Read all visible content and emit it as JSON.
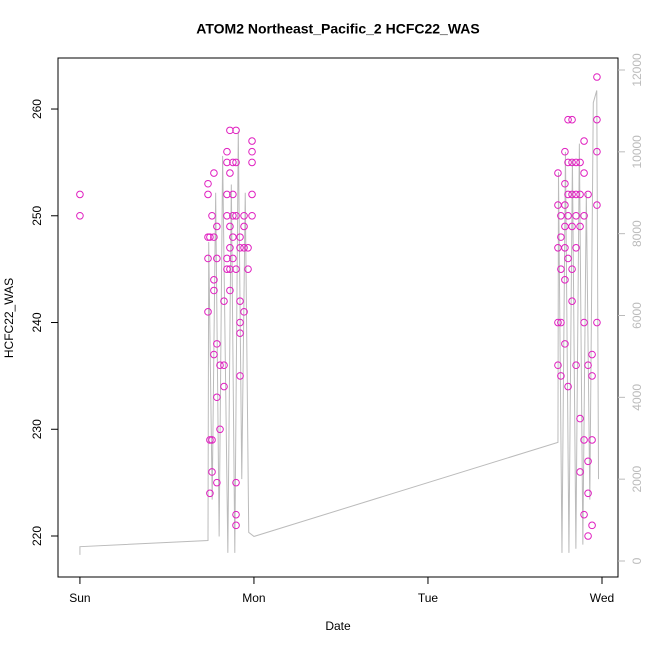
{
  "chart_data": {
    "type": "scatter",
    "title": "ATOM2 Northeast_Pacific_2 HCFC22_WAS",
    "xlabel": "Date",
    "ylabel": "HCFC22_WAS",
    "xlim": [
      -0.126,
      3.092
    ],
    "xticks": [
      {
        "value": 0,
        "label": "Sun"
      },
      {
        "value": 1,
        "label": "Mon"
      },
      {
        "value": 2,
        "label": "Tue"
      },
      {
        "value": 3,
        "label": "Wed"
      }
    ],
    "ylim": [
      216.16,
      264.78
    ],
    "yticks": [
      220,
      230,
      240,
      250,
      260
    ],
    "y2lim": [
      -391,
      12293
    ],
    "y2ticks": [
      0,
      2000,
      4000,
      6000,
      8000,
      10000,
      12000
    ],
    "series": [
      {
        "color": "#e020c0",
        "x": [
          0,
          0,
          0.736,
          0.736,
          0.736,
          0.736,
          0.736,
          0.747,
          0.747,
          0.747,
          0.759,
          0.759,
          0.759,
          0.77,
          0.77,
          0.77,
          0.77,
          0.77,
          0.787,
          0.787,
          0.787,
          0.787,
          0.787,
          0.805,
          0.805,
          0.828,
          0.828,
          0.828,
          0.845,
          0.845,
          0.845,
          0.845,
          0.845,
          0.845,
          0.862,
          0.862,
          0.862,
          0.862,
          0.862,
          0.862,
          0.879,
          0.879,
          0.879,
          0.879,
          0.879,
          0.897,
          0.897,
          0.897,
          0.897,
          0.897,
          0.897,
          0.897,
          0.92,
          0.92,
          0.92,
          0.92,
          0.92,
          0.92,
          0.943,
          0.943,
          0.943,
          0.943,
          0.966,
          0.966,
          0.989,
          0.989,
          0.989,
          0.989,
          0.989,
          2.747,
          2.747,
          2.747,
          2.747,
          2.747,
          2.764,
          2.764,
          2.764,
          2.764,
          2.764,
          2.787,
          2.787,
          2.787,
          2.787,
          2.787,
          2.787,
          2.787,
          2.805,
          2.805,
          2.805,
          2.805,
          2.805,
          2.805,
          2.828,
          2.828,
          2.828,
          2.828,
          2.828,
          2.828,
          2.851,
          2.851,
          2.851,
          2.851,
          2.851,
          2.874,
          2.874,
          2.874,
          2.874,
          2.874,
          2.897,
          2.897,
          2.897,
          2.897,
          2.897,
          2.897,
          2.92,
          2.92,
          2.92,
          2.92,
          2.92,
          2.943,
          2.943,
          2.943,
          2.943,
          2.971,
          2.971,
          2.971,
          2.971,
          2.971
        ],
        "values": [
          252,
          250,
          253,
          252,
          248,
          246,
          241,
          248,
          229,
          224,
          229,
          226,
          250,
          243,
          244,
          237,
          254,
          248,
          249,
          246,
          238,
          233,
          225,
          236,
          230,
          242,
          234,
          236,
          256,
          255,
          252,
          250,
          246,
          245,
          258,
          254,
          249,
          247,
          245,
          243,
          255,
          252,
          250,
          248,
          246,
          258,
          255,
          250,
          245,
          225,
          222,
          221,
          240,
          239,
          242,
          235,
          248,
          247,
          250,
          249,
          247,
          241,
          245,
          247,
          257,
          256,
          255,
          252,
          250,
          254,
          251,
          247,
          240,
          236,
          250,
          248,
          245,
          240,
          235,
          256,
          253,
          251,
          249,
          247,
          244,
          238,
          259,
          255,
          252,
          250,
          246,
          234,
          259,
          255,
          252,
          249,
          245,
          242,
          255,
          252,
          250,
          247,
          236,
          255,
          252,
          249,
          231,
          226,
          257,
          254,
          250,
          240,
          229,
          222,
          252,
          236,
          227,
          220,
          224,
          229,
          221,
          235,
          237,
          263,
          259,
          256,
          240,
          251
        ]
      },
      {
        "color": "#bbbbbb",
        "axis": "y2",
        "x": [
          0,
          0,
          0.736,
          0.74,
          0.76,
          0.78,
          0.8,
          0.82,
          0.85,
          0.87,
          0.89,
          0.91,
          0.93,
          0.95,
          0.97,
          1.0,
          2.747,
          2.75,
          2.77,
          2.79,
          2.81,
          2.83,
          2.85,
          2.87,
          2.89,
          2.91,
          2.93,
          2.95,
          2.97,
          2.98
        ],
        "values": [
          150,
          350,
          500,
          7800,
          1500,
          9000,
          600,
          9900,
          200,
          9200,
          200,
          10500,
          2000,
          9000,
          700,
          600,
          2900,
          9500,
          200,
          10000,
          200,
          9800,
          300,
          10200,
          400,
          9000,
          1500,
          11200,
          11500,
          2000
        ]
      }
    ]
  }
}
